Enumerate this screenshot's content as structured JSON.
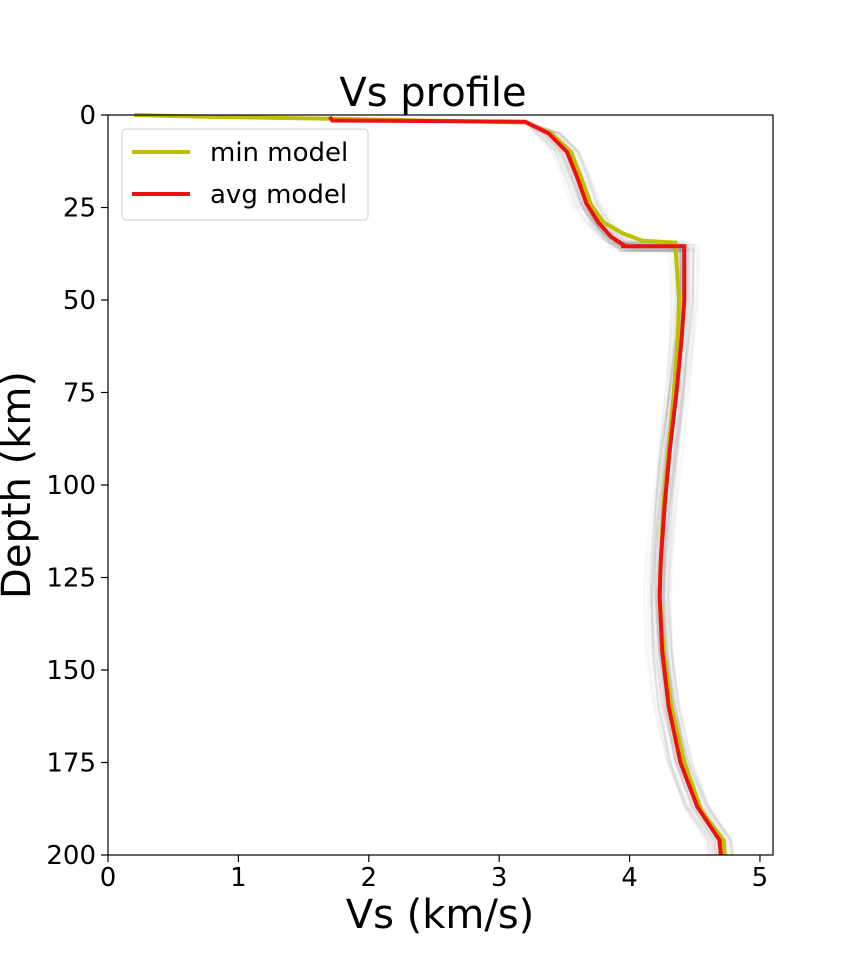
{
  "chart_data": {
    "type": "line",
    "title": "Vs profile",
    "xlabel": "Vs (km/s)",
    "ylabel": "Depth (km)",
    "xlim": [
      0,
      5.1
    ],
    "ylim": [
      200,
      0
    ],
    "y_inverted": true,
    "grid": false,
    "legend_position": "top-left",
    "x_ticks": [
      0,
      1,
      2,
      3,
      4,
      5
    ],
    "y_ticks": [
      0,
      25,
      50,
      75,
      100,
      125,
      150,
      175,
      200
    ],
    "x_tick_labels": [
      "0",
      "1",
      "2",
      "3",
      "4",
      "5"
    ],
    "y_tick_labels": [
      "0",
      "25",
      "50",
      "75",
      "100",
      "125",
      "150",
      "175",
      "200"
    ],
    "series": [
      {
        "name": "min model",
        "color": "#bfbf00",
        "points": [
          [
            0.2,
            0
          ],
          [
            0.75,
            0.5
          ],
          [
            1.7,
            1
          ],
          [
            3.2,
            2
          ],
          [
            3.4,
            5
          ],
          [
            3.55,
            10
          ],
          [
            3.63,
            17
          ],
          [
            3.7,
            24
          ],
          [
            3.8,
            29
          ],
          [
            3.95,
            32
          ],
          [
            4.1,
            34
          ],
          [
            4.35,
            34.5
          ],
          [
            4.36,
            40
          ],
          [
            4.38,
            50
          ],
          [
            4.37,
            60
          ],
          [
            4.34,
            75
          ],
          [
            4.3,
            90
          ],
          [
            4.26,
            105
          ],
          [
            4.24,
            120
          ],
          [
            4.23,
            130
          ],
          [
            4.26,
            145
          ],
          [
            4.32,
            160
          ],
          [
            4.42,
            175
          ],
          [
            4.55,
            188
          ],
          [
            4.72,
            196
          ],
          [
            4.73,
            200
          ]
        ]
      },
      {
        "name": "avg model",
        "color": "#ee1111",
        "points": [
          [
            1.7,
            0.5
          ],
          [
            1.72,
            1.5
          ],
          [
            3.2,
            1.8
          ],
          [
            3.38,
            5
          ],
          [
            3.52,
            10
          ],
          [
            3.6,
            17
          ],
          [
            3.67,
            24
          ],
          [
            3.76,
            29
          ],
          [
            3.86,
            33
          ],
          [
            3.95,
            35
          ],
          [
            3.95,
            35.5
          ],
          [
            4.42,
            35.5
          ],
          [
            4.42,
            40
          ],
          [
            4.42,
            50
          ],
          [
            4.4,
            60
          ],
          [
            4.36,
            75
          ],
          [
            4.31,
            90
          ],
          [
            4.27,
            105
          ],
          [
            4.24,
            120
          ],
          [
            4.23,
            130
          ],
          [
            4.25,
            145
          ],
          [
            4.3,
            160
          ],
          [
            4.39,
            175
          ],
          [
            4.52,
            187
          ],
          [
            4.69,
            196
          ],
          [
            4.7,
            200
          ]
        ]
      }
    ]
  }
}
